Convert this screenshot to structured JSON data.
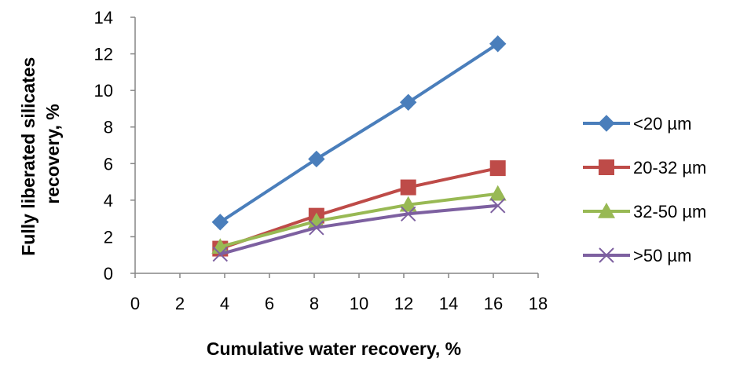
{
  "chart_data": {
    "type": "line",
    "xlabel": "Cumulative water recovery, %",
    "ylabel_lines": [
      "Fully  liberated silicates",
      "recovery, %"
    ],
    "xlim": [
      0,
      18
    ],
    "ylim": [
      0,
      14
    ],
    "xticks": [
      0,
      2,
      4,
      6,
      8,
      10,
      12,
      14,
      16,
      18
    ],
    "yticks": [
      0,
      2,
      4,
      6,
      8,
      10,
      12,
      14
    ],
    "grid": false,
    "legend_position": "right",
    "series": [
      {
        "name": "<20 µm",
        "color": "#4A7EBB",
        "marker": "diamond",
        "points": [
          [
            3.8,
            2.8
          ],
          [
            8.1,
            6.25
          ],
          [
            12.2,
            9.35
          ],
          [
            16.2,
            12.55
          ]
        ]
      },
      {
        "name": "20-32 µm",
        "color": "#BE4B48",
        "marker": "square",
        "points": [
          [
            3.8,
            1.35
          ],
          [
            8.1,
            3.15
          ],
          [
            12.2,
            4.7
          ],
          [
            16.2,
            5.75
          ]
        ]
      },
      {
        "name": "32-50 µm",
        "color": "#98B954",
        "marker": "triangle",
        "points": [
          [
            3.8,
            1.45
          ],
          [
            8.1,
            2.85
          ],
          [
            12.2,
            3.75
          ],
          [
            16.2,
            4.35
          ]
        ]
      },
      {
        "name": ">50 µm",
        "color": "#7D60A0",
        "marker": "x",
        "points": [
          [
            3.8,
            1.05
          ],
          [
            8.1,
            2.5
          ],
          [
            12.2,
            3.25
          ],
          [
            16.2,
            3.7
          ]
        ]
      }
    ]
  }
}
